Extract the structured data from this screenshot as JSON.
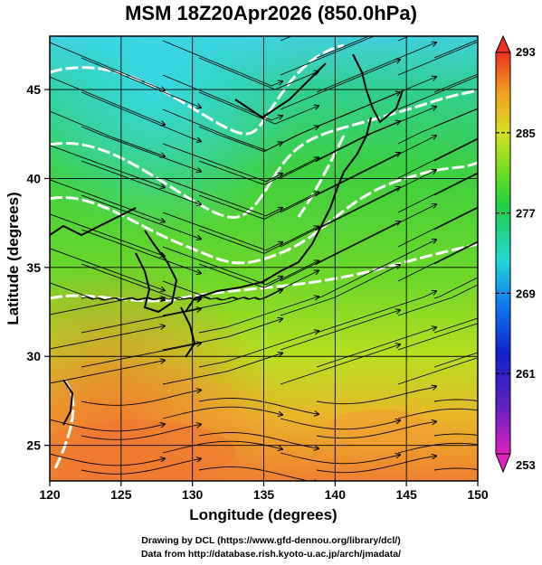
{
  "title": "MSM 18Z20Apr2026 (850.0hPa)",
  "map": {
    "lon_range": [
      120,
      150
    ],
    "lat_range": [
      23,
      48
    ],
    "lon_ticks": [
      "120",
      "125",
      "130",
      "135",
      "140",
      "145",
      "150"
    ],
    "lat_ticks": [
      "25",
      "30",
      "35",
      "40",
      "45"
    ],
    "xlabel": "Longitude (degrees)",
    "ylabel": "Latitude  (degrees)",
    "gridlines": "on"
  },
  "colorbar": {
    "labels": [
      "293",
      "285",
      "277",
      "269",
      "261",
      "253"
    ],
    "range": [
      253,
      293
    ]
  },
  "colors": {
    "cold": "#40d8e0",
    "mid": "#3cd240",
    "warm": "#a8e020",
    "hot": "#f08030"
  },
  "credits": {
    "line1": "Drawing by DCL (https://www.gfd-dennou.org/library/dcl/)",
    "line2": "Data from http://database.rish.kyoto-u.ac.jp/arch/jmadata/"
  }
}
